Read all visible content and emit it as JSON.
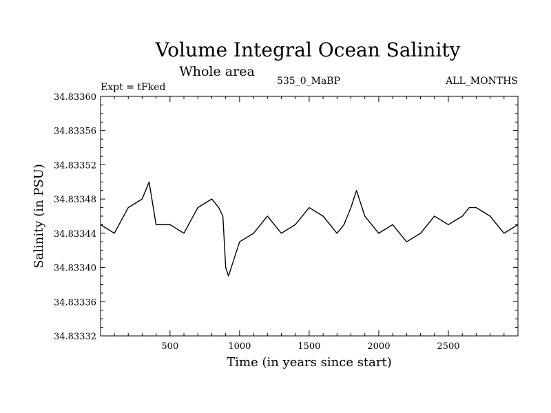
{
  "chart_data": {
    "type": "line",
    "title": "Volume Integral Ocean Salinity",
    "subtitle": "Whole area",
    "header_left": "Expt = tFked",
    "header_center": "535_0_MaBP",
    "header_right": "ALL_MONTHS",
    "xlabel": "Time (in years since start)",
    "ylabel": "Salinity (in PSU)",
    "xlim": [
      1,
      3000
    ],
    "ylim": [
      34.83332,
      34.8336
    ],
    "xticks": [
      500,
      1000,
      1500,
      2000,
      2500
    ],
    "xtick_labels": [
      "500",
      "1000",
      "1500",
      "2000",
      "2500"
    ],
    "yticks": [
      34.83332,
      34.83336,
      34.8334,
      34.83344,
      34.83348,
      34.83352,
      34.83356,
      34.8336
    ],
    "ytick_labels": [
      "34.83332",
      "34.83336",
      "34.83340",
      "34.83344",
      "34.83348",
      "34.83352",
      "34.83356",
      "34.83360"
    ],
    "grid": false,
    "series": [
      {
        "x": [
          1,
          100,
          200,
          300,
          350,
          400,
          500,
          600,
          700,
          800,
          850,
          880,
          900,
          920,
          1000,
          1100,
          1200,
          1300,
          1400,
          1500,
          1600,
          1700,
          1750,
          1800,
          1840,
          1900,
          2000,
          2100,
          2200,
          2300,
          2400,
          2500,
          2600,
          2650,
          2700,
          2800,
          2900,
          3000
        ],
        "values": [
          34.83345,
          34.83344,
          34.83347,
          34.83348,
          34.8335,
          34.83345,
          34.83345,
          34.83344,
          34.83347,
          34.83348,
          34.83347,
          34.83346,
          34.8334,
          34.83339,
          34.83343,
          34.83344,
          34.83346,
          34.83344,
          34.83345,
          34.83347,
          34.83346,
          34.83344,
          34.83345,
          34.83347,
          34.83349,
          34.83346,
          34.83344,
          34.83345,
          34.83343,
          34.83344,
          34.83346,
          34.83345,
          34.83346,
          34.83347,
          34.83347,
          34.83346,
          34.83344,
          34.83345
        ],
        "color": "#000000"
      }
    ]
  }
}
